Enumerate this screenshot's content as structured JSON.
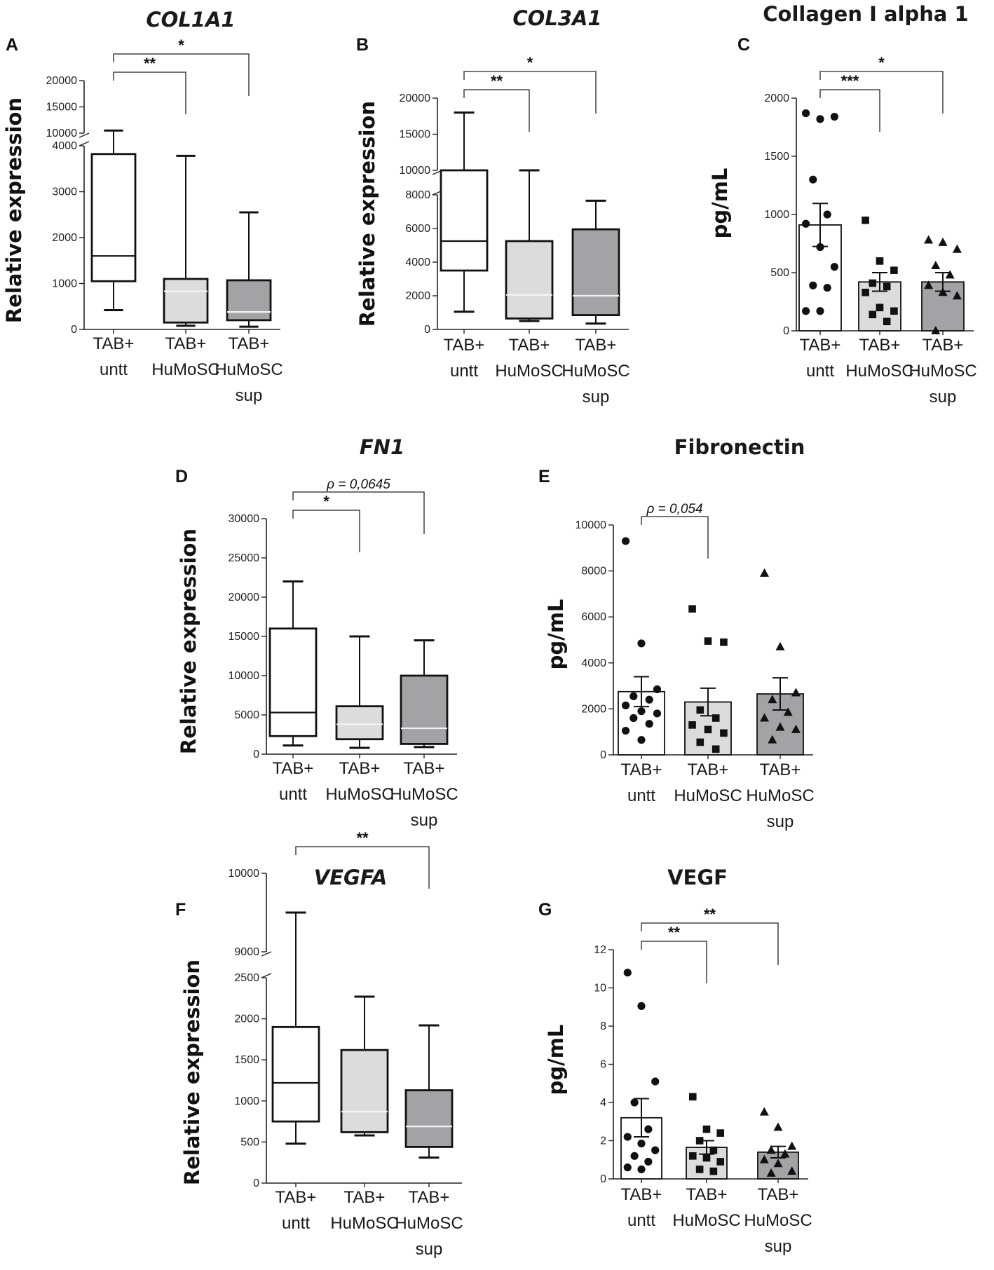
{
  "colors": {
    "untt": "#ffffff",
    "humosc": "#dcdcdc",
    "sup": "#a3a3a6",
    "ink": "#111111"
  },
  "categories": [
    [
      "TAB+",
      "untt"
    ],
    [
      "TAB+",
      "HuMoSC"
    ],
    [
      "TAB+",
      "HuMoSC",
      "sup"
    ]
  ],
  "chart_data": [
    {
      "panel": "A",
      "title": "COL1A1",
      "title_italic": true,
      "type": "box",
      "ylabel": "Relative expression",
      "axis_break": {
        "lower_ylim": [
          0,
          4000
        ],
        "lower_ticks": [
          0,
          1000,
          2000,
          3000,
          4000
        ],
        "upper_ylim": [
          10000,
          20000
        ],
        "upper_ticks": [
          10000,
          15000,
          20000
        ]
      },
      "boxes": [
        {
          "min": 420,
          "q1": 1050,
          "median": 1600,
          "q3": 3820,
          "max": 10500
        },
        {
          "min": 80,
          "q1": 150,
          "median": 830,
          "q3": 1100,
          "max": 3780
        },
        {
          "min": 60,
          "q1": 200,
          "median": 380,
          "q3": 1070,
          "max": 2550
        }
      ],
      "significance": [
        {
          "from": 0,
          "to": 1,
          "label": "**"
        },
        {
          "from": 0,
          "to": 2,
          "label": "*"
        }
      ]
    },
    {
      "panel": "B",
      "title": "COL3A1",
      "title_italic": true,
      "type": "box",
      "ylabel": "Relative expression",
      "axis_break": {
        "lower_ylim": [
          0,
          8000
        ],
        "lower_ticks": [
          0,
          2000,
          4000,
          6000,
          8000
        ],
        "upper_ylim": [
          10000,
          20000
        ],
        "upper_ticks": [
          10000,
          15000,
          20000
        ]
      },
      "boxes": [
        {
          "min": 1050,
          "q1": 3500,
          "median": 5250,
          "q3": 10000,
          "max": 18000
        },
        {
          "min": 500,
          "q1": 650,
          "median": 2050,
          "q3": 5250,
          "max": 9700
        },
        {
          "min": 350,
          "q1": 850,
          "median": 2000,
          "q3": 5950,
          "max": 7650
        }
      ],
      "significance": [
        {
          "from": 0,
          "to": 1,
          "label": "**"
        },
        {
          "from": 0,
          "to": 2,
          "label": "*"
        }
      ]
    },
    {
      "panel": "C",
      "title": "Collagen I alpha 1",
      "title_italic": false,
      "type": "bar_scatter",
      "ylabel": "pg/mL",
      "ylim": [
        0,
        2000
      ],
      "yticks": [
        0,
        500,
        1000,
        1500,
        2000
      ],
      "bars": [
        {
          "mean": 910,
          "sem": 185
        },
        {
          "mean": 420,
          "sem": 80
        },
        {
          "mean": 420,
          "sem": 80
        }
      ],
      "markers": [
        "circle",
        "square",
        "triangle"
      ],
      "points": [
        [
          1870,
          1820,
          1840,
          1300,
          1000,
          920,
          720,
          550,
          390,
          370,
          170,
          170
        ],
        [
          950,
          600,
          520,
          410,
          380,
          330,
          200,
          170,
          140,
          80
        ],
        [
          780,
          760,
          700,
          560,
          480,
          390,
          330,
          300,
          0
        ]
      ],
      "significance": [
        {
          "from": 0,
          "to": 1,
          "label": "***"
        },
        {
          "from": 0,
          "to": 2,
          "label": "*"
        }
      ]
    },
    {
      "panel": "D",
      "title": "FN1",
      "title_italic": true,
      "type": "box",
      "ylabel": "Relative expression",
      "ylim": [
        0,
        30000
      ],
      "yticks": [
        0,
        5000,
        10000,
        15000,
        20000,
        25000,
        30000
      ],
      "boxes": [
        {
          "min": 1100,
          "q1": 2300,
          "median": 5300,
          "q3": 16000,
          "max": 22000
        },
        {
          "min": 800,
          "q1": 1900,
          "median": 3800,
          "q3": 6100,
          "max": 15000
        },
        {
          "min": 900,
          "q1": 1300,
          "median": 3300,
          "q3": 10000,
          "max": 14500
        }
      ],
      "significance": [
        {
          "from": 0,
          "to": 1,
          "label": "*"
        },
        {
          "from": 0,
          "to": 2,
          "label": "ρ = 0,0645"
        }
      ]
    },
    {
      "panel": "E",
      "title": "Fibronectin",
      "title_italic": false,
      "type": "bar_scatter",
      "ylabel": "pg/mL",
      "ylim": [
        0,
        10000
      ],
      "yticks": [
        0,
        2000,
        4000,
        6000,
        8000,
        10000
      ],
      "bars": [
        {
          "mean": 2750,
          "sem": 650
        },
        {
          "mean": 2300,
          "sem": 600
        },
        {
          "mean": 2650,
          "sem": 700
        }
      ],
      "markers": [
        "circle",
        "square",
        "triangle"
      ],
      "points": [
        [
          9300,
          4850,
          2850,
          2550,
          2400,
          2150,
          1900,
          1800,
          1600,
          1350,
          1050,
          650
        ],
        [
          6350,
          4950,
          4900,
          1950,
          1600,
          1300,
          1100,
          950,
          550,
          250
        ],
        [
          7900,
          4700,
          2700,
          2400,
          1850,
          1600,
          1200,
          1100,
          650
        ]
      ],
      "significance": [
        {
          "from": 0,
          "to": 1,
          "label": "ρ = 0,054"
        }
      ]
    },
    {
      "panel": "F",
      "title": "VEGFA",
      "title_italic": true,
      "type": "box",
      "ylabel": "Relative expression",
      "axis_break": {
        "lower_ylim": [
          0,
          2500
        ],
        "lower_ticks": [
          0,
          500,
          1000,
          1500,
          2000,
          2500
        ],
        "upper_ylim": [
          9000,
          10000
        ],
        "upper_ticks": [
          9000,
          10000
        ]
      },
      "boxes": [
        {
          "min": 480,
          "q1": 750,
          "median": 1220,
          "q3": 1900,
          "max": 9500
        },
        {
          "min": 580,
          "q1": 620,
          "median": 870,
          "q3": 1620,
          "max": 2270
        },
        {
          "min": 310,
          "q1": 440,
          "median": 690,
          "q3": 1130,
          "max": 1920
        }
      ],
      "significance": [
        {
          "from": 0,
          "to": 2,
          "label": "**"
        }
      ]
    },
    {
      "panel": "G",
      "title": "VEGF",
      "title_italic": false,
      "type": "bar_scatter",
      "ylabel": "pg/mL",
      "ylim": [
        0,
        12
      ],
      "yticks": [
        0,
        2,
        4,
        6,
        8,
        10,
        12
      ],
      "bars": [
        {
          "mean": 3.2,
          "sem": 1.0
        },
        {
          "mean": 1.65,
          "sem": 0.35
        },
        {
          "mean": 1.4,
          "sem": 0.3
        }
      ],
      "markers": [
        "circle",
        "square",
        "triangle"
      ],
      "points": [
        [
          10.8,
          9.05,
          5.1,
          4.0,
          2.6,
          2.2,
          1.85,
          1.5,
          1.2,
          0.9,
          0.6,
          0.5
        ],
        [
          4.3,
          2.6,
          2.4,
          2.0,
          1.5,
          1.2,
          1.1,
          0.9,
          0.5,
          0.4
        ],
        [
          3.5,
          2.7,
          1.7,
          1.5,
          1.3,
          1.0,
          0.8,
          0.4,
          0.3
        ]
      ],
      "significance": [
        {
          "from": 0,
          "to": 1,
          "label": "**"
        },
        {
          "from": 0,
          "to": 2,
          "label": "**"
        }
      ]
    }
  ]
}
